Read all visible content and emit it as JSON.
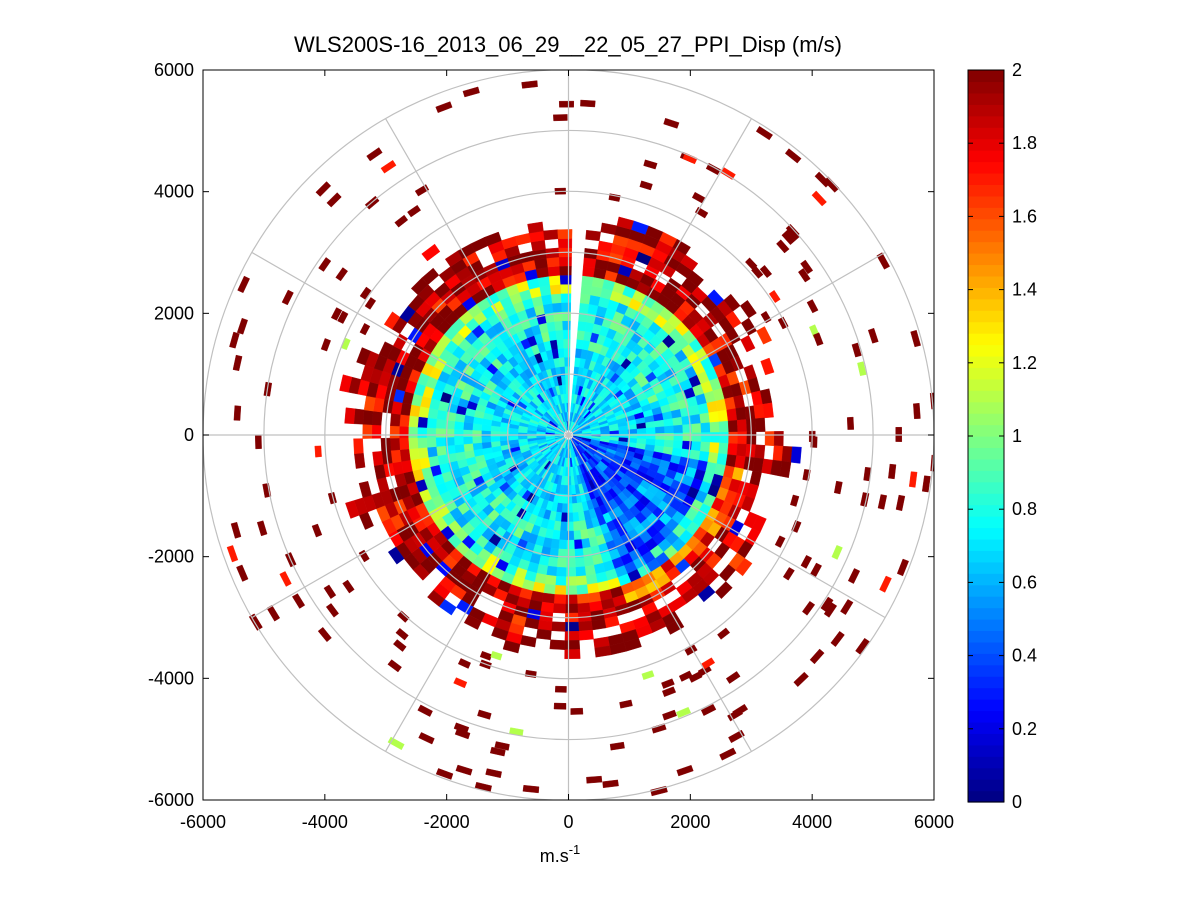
{
  "chart_data": {
    "type": "heatmap",
    "subtype": "polar-ppi",
    "title": "WLS200S-16_2013_06_29__22_05_27_PPI_Disp (m/s)",
    "xlabel": "m.s",
    "xlabel_superscript": "-1",
    "ylabel": "",
    "xlim": [
      -6000,
      6000
    ],
    "ylim": [
      -6000,
      6000
    ],
    "x_ticks": [
      "-6000",
      "-4000",
      "-2000",
      "0",
      "2000",
      "4000",
      "6000"
    ],
    "y_ticks": [
      "6000",
      "4000",
      "2000",
      "0",
      "-2000",
      "-4000",
      "-6000"
    ],
    "polar_grid": {
      "ring_radii_m": [
        1000,
        2000,
        3000,
        4000,
        5000,
        6000
      ],
      "spoke_angles_deg": [
        0,
        30,
        60,
        90,
        120,
        150,
        180,
        210,
        240,
        270,
        300,
        330
      ],
      "color": "#c0c0c0"
    },
    "colorbar": {
      "min": 0,
      "max": 2,
      "ticks": [
        "2",
        "1.8",
        "1.6",
        "1.4",
        "1.2",
        "1",
        "0.8",
        "0.6",
        "0.4",
        "0.2",
        "0"
      ],
      "colormap": "jet"
    },
    "data_summary": {
      "dense_region_radius_m": 3600,
      "sparse_scatter_radius_m": 6000,
      "center_value": 0.7,
      "ring_2500_to_3500_value": 2.0,
      "missing_sector_deg": [
        0,
        5
      ],
      "low_value_region": "east-southeast, around 0.4-0.6"
    }
  }
}
